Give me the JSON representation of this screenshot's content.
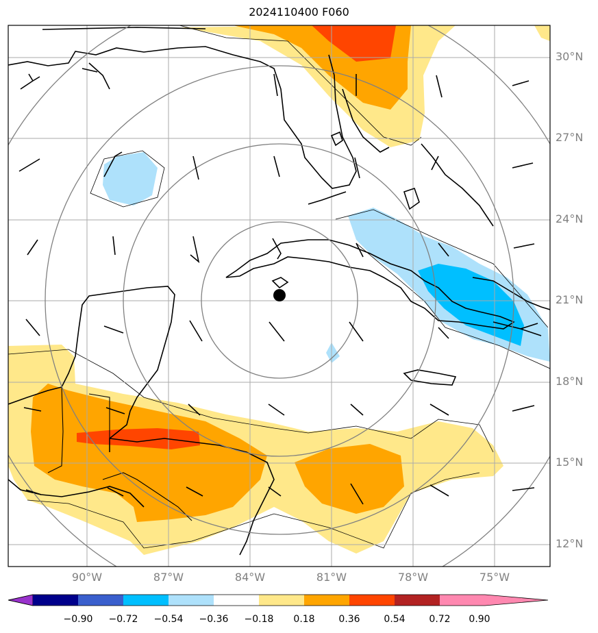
{
  "title": "2024110400 F060",
  "lat_labels": [
    "30°N",
    "27°N",
    "24°N",
    "21°N",
    "18°N",
    "15°N",
    "12°N"
  ],
  "lon_labels": [
    "90°W",
    "87°W",
    "84°W",
    "81°W",
    "78°W",
    "75°W"
  ],
  "colorbar": {
    "ticks": [
      "−0.90",
      "−0.72",
      "−0.54",
      "−0.36",
      "−0.18",
      "0.18",
      "0.36",
      "0.54",
      "0.72",
      "0.90"
    ],
    "colors": [
      "#9932cc",
      "#00008b",
      "#3a5fcd",
      "#00bfff",
      "#aee1fb",
      "#ffffff",
      "#ffe88a",
      "#ffa500",
      "#ff4500",
      "#b22222",
      "#ff88b0"
    ]
  },
  "colors": {
    "light_blue": "#aee1fb",
    "blue": "#00bfff",
    "light_yellow": "#ffe88a",
    "orange": "#ffa500",
    "red_orange": "#ff4500",
    "grid": "#aaaaaa",
    "range_rings": "#808080"
  },
  "storm_center": {
    "lat": 21.2,
    "lon": -82.6
  }
}
